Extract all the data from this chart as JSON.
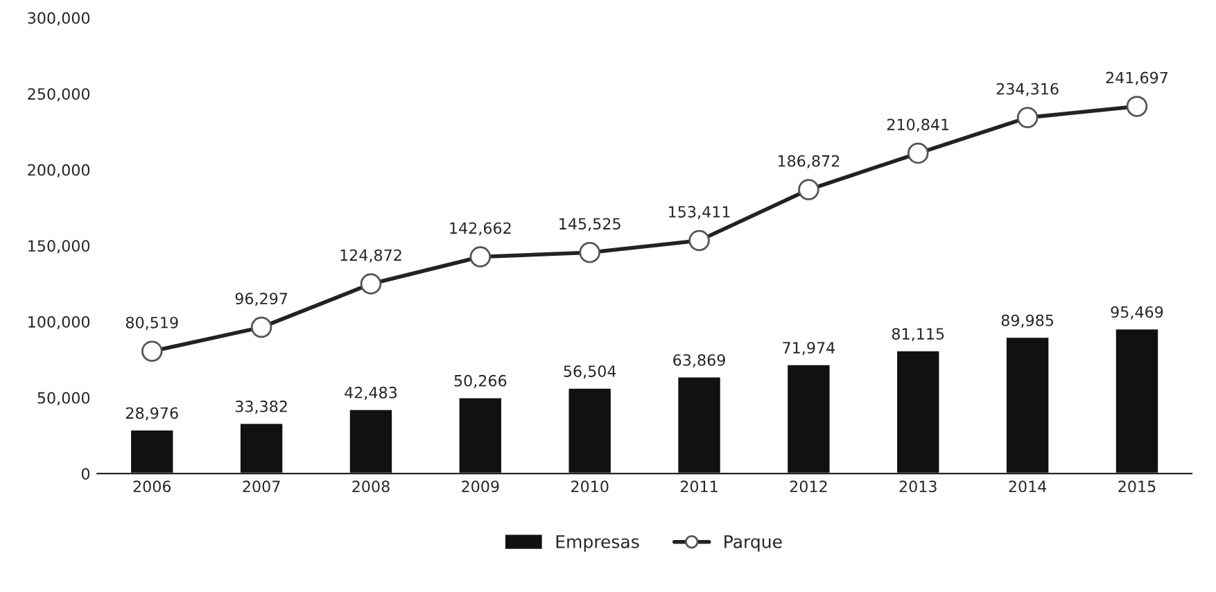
{
  "chart_data": {
    "type": "bar",
    "categories": [
      "2006",
      "2007",
      "2008",
      "2009",
      "2010",
      "2011",
      "2012",
      "2013",
      "2014",
      "2015"
    ],
    "series": [
      {
        "name": "Empresas",
        "color": "#111111",
        "values": [
          28976,
          33382,
          42483,
          50266,
          56504,
          63869,
          71974,
          81115,
          89985,
          95469
        ],
        "value_labels": [
          "28,976",
          "33,382",
          "42,483",
          "50,266",
          "56,504",
          "63,869",
          "71,974",
          "81,115",
          "89,985",
          "95,469"
        ]
      },
      {
        "name": "Parque",
        "type": "line",
        "color": "#222222",
        "marker": "circle",
        "values": [
          80519,
          96297,
          124872,
          142662,
          145525,
          153411,
          186872,
          210841,
          234316,
          241697
        ],
        "value_labels": [
          "80,519",
          "96,297",
          "124,872",
          "142,662",
          "145,525",
          "153,411",
          "186,872",
          "210,841",
          "234,316",
          "241,697"
        ]
      }
    ],
    "ylim": [
      0,
      300000
    ],
    "yticks": [
      {
        "value": 0,
        "label": "0"
      },
      {
        "value": 50000,
        "label": "50,000"
      },
      {
        "value": 100000,
        "label": "100,000"
      },
      {
        "value": 150000,
        "label": "150,000"
      },
      {
        "value": 200000,
        "label": "200,000"
      },
      {
        "value": 250000,
        "label": "250,000"
      },
      {
        "value": 300000,
        "label": "300,000"
      }
    ],
    "legend": "bottom"
  }
}
